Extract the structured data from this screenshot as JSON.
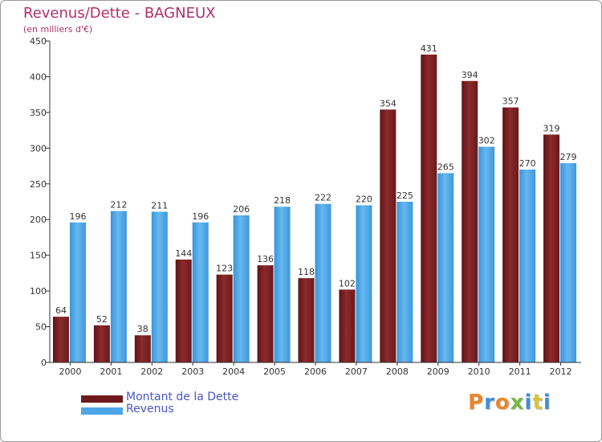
{
  "header": {
    "title": "Revenus/Dette - BAGNEUX",
    "subtitle": "(en milliers d'€)"
  },
  "legend": {
    "debt_label": "Montant de la Dette",
    "revenue_label": "Revenus"
  },
  "logo": {
    "text": "Proxiti"
  },
  "colors": {
    "debt": "#7a1f20",
    "debt_light": "#a03a3c",
    "revenue": "#4ea6e6",
    "revenue_light": "#6dbcf2",
    "title": "#b0306a",
    "legend_text": "#4a55cc"
  },
  "chart_data": {
    "type": "bar",
    "title": "Revenus/Dette - BAGNEUX",
    "subtitle": "(en milliers d'€)",
    "xlabel": "",
    "ylabel": "",
    "ylim": [
      0,
      450
    ],
    "yticks": [
      0,
      50,
      100,
      150,
      200,
      250,
      300,
      350,
      400,
      450
    ],
    "grid": false,
    "legend_position": "bottom-left",
    "categories": [
      "2000",
      "2001",
      "2002",
      "2003",
      "2004",
      "2005",
      "2006",
      "2007",
      "2008",
      "2009",
      "2010",
      "2011",
      "2012"
    ],
    "series": [
      {
        "name": "Montant de la Dette",
        "values": [
          64,
          52,
          38,
          144,
          123,
          136,
          118,
          102,
          354,
          431,
          394,
          357,
          319
        ]
      },
      {
        "name": "Revenus",
        "values": [
          196,
          212,
          211,
          196,
          206,
          218,
          222,
          220,
          225,
          265,
          302,
          270,
          279
        ]
      }
    ]
  }
}
